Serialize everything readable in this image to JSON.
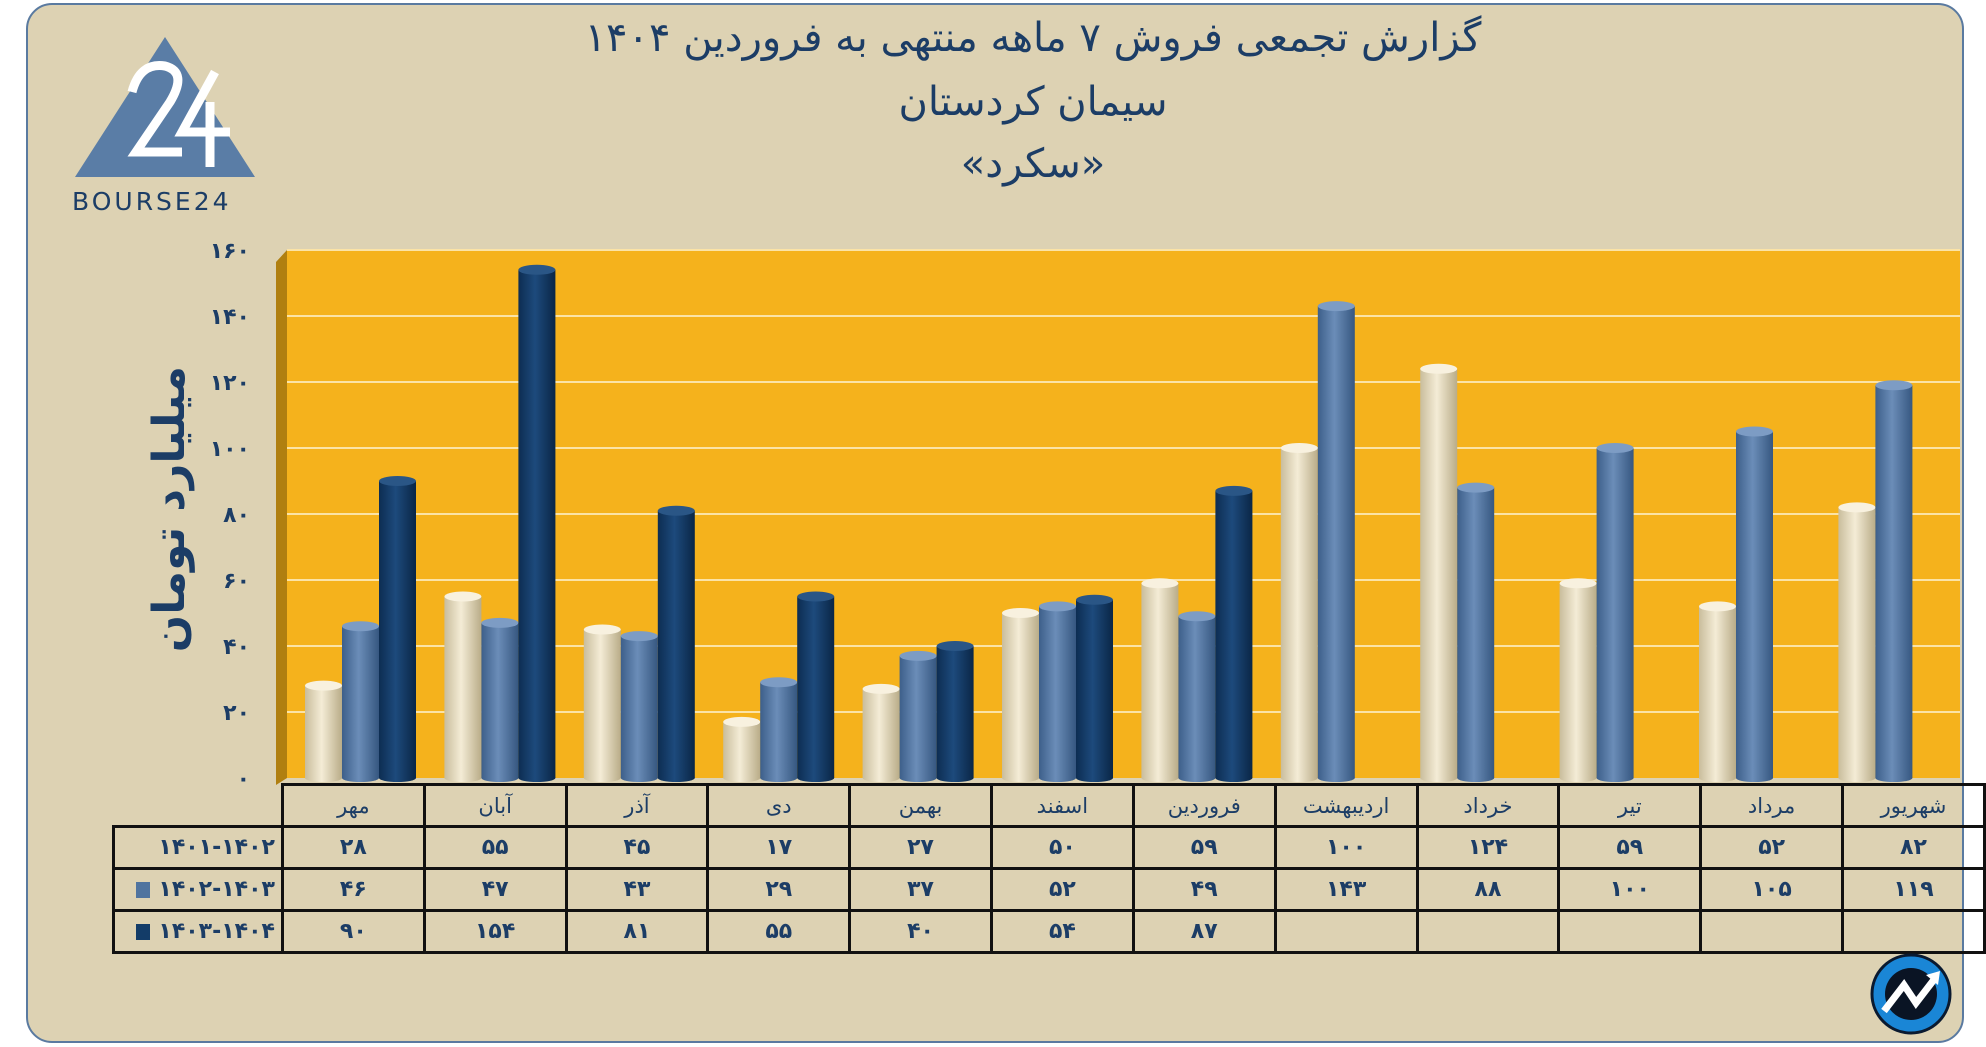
{
  "title": {
    "line1": "گزارش تجمعی فروش ۷ ماهه منتهی به فروردین ۱۴۰۴",
    "line2": "سیمان کردستان",
    "line3": "«سکرد»"
  },
  "logo": {
    "text": "BOURSE24",
    "mark": "24"
  },
  "colors": {
    "background": "#ddd2b3",
    "plot": "#f5b21c",
    "series1": "#e9dfc4",
    "series2": "#50749f",
    "series3": "#133c68",
    "text": "#1c3d66"
  },
  "chart_data": {
    "type": "bar",
    "title": "گزارش تجمعی فروش ۷ ماهه منتهی به فروردین ۱۴۰۴",
    "ylabel": "میلیارد تومان",
    "xlabel": "",
    "ylim": [
      0,
      160
    ],
    "yticks": [
      "۰",
      "۲۰",
      "۴۰",
      "۶۰",
      "۸۰",
      "۱۰۰",
      "۱۲۰",
      "۱۴۰",
      "۱۶۰"
    ],
    "ytick_values": [
      0,
      20,
      40,
      60,
      80,
      100,
      120,
      140,
      160
    ],
    "grid": true,
    "legend": "table-left",
    "categories": [
      "مهر",
      "آبان",
      "آذر",
      "دی",
      "بهمن",
      "اسفند",
      "فروردین",
      "اردیبهشت",
      "خرداد",
      "تیر",
      "مرداد",
      "شهریور"
    ],
    "series": [
      {
        "name": "۱۴۰۱-۱۴۰۲",
        "values": [
          28,
          55,
          45,
          17,
          27,
          50,
          59,
          100,
          124,
          59,
          52,
          82
        ],
        "labels": [
          "۲۸",
          "۵۵",
          "۴۵",
          "۱۷",
          "۲۷",
          "۵۰",
          "۵۹",
          "۱۰۰",
          "۱۲۴",
          "۵۹",
          "۵۲",
          "۸۲"
        ]
      },
      {
        "name": "۱۴۰۲-۱۴۰۳",
        "values": [
          46,
          47,
          43,
          29,
          37,
          52,
          49,
          143,
          88,
          100,
          105,
          119
        ],
        "labels": [
          "۴۶",
          "۴۷",
          "۴۳",
          "۲۹",
          "۳۷",
          "۵۲",
          "۴۹",
          "۱۴۳",
          "۸۸",
          "۱۰۰",
          "۱۰۵",
          "۱۱۹"
        ]
      },
      {
        "name": "۱۴۰۳-۱۴۰۴",
        "values": [
          90,
          154,
          81,
          55,
          40,
          54,
          87,
          null,
          null,
          null,
          null,
          null
        ],
        "labels": [
          "۹۰",
          "۱۵۴",
          "۸۱",
          "۵۵",
          "۴۰",
          "۵۴",
          "۸۷",
          "",
          "",
          "",
          "",
          ""
        ]
      }
    ]
  }
}
